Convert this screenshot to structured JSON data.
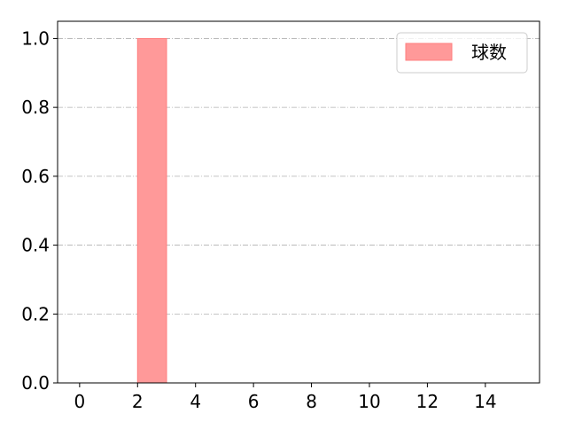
{
  "chart_data": {
    "type": "bar",
    "title": "",
    "xlabel": "",
    "ylabel": "",
    "xlim": [
      -0.76,
      15.87
    ],
    "ylim": [
      0,
      1.05
    ],
    "xticks": [
      0,
      2,
      4,
      6,
      8,
      10,
      12,
      14
    ],
    "yticks": [
      0.0,
      0.2,
      0.4,
      0.6,
      0.8,
      1.0
    ],
    "xtick_labels": [
      "0",
      "2",
      "4",
      "6",
      "8",
      "10",
      "12",
      "14"
    ],
    "ytick_labels": [
      "0.0",
      "0.2",
      "0.4",
      "0.6",
      "0.8",
      "1.0"
    ],
    "grid": "y, dash-dot, gray",
    "legend_position": "top-right",
    "series": [
      {
        "name": "球数",
        "color": "#ff9999",
        "edge_color": "#ff7f7f",
        "bars": [
          {
            "x_start": 2,
            "x_end": 3,
            "value": 1.0
          }
        ]
      }
    ]
  }
}
